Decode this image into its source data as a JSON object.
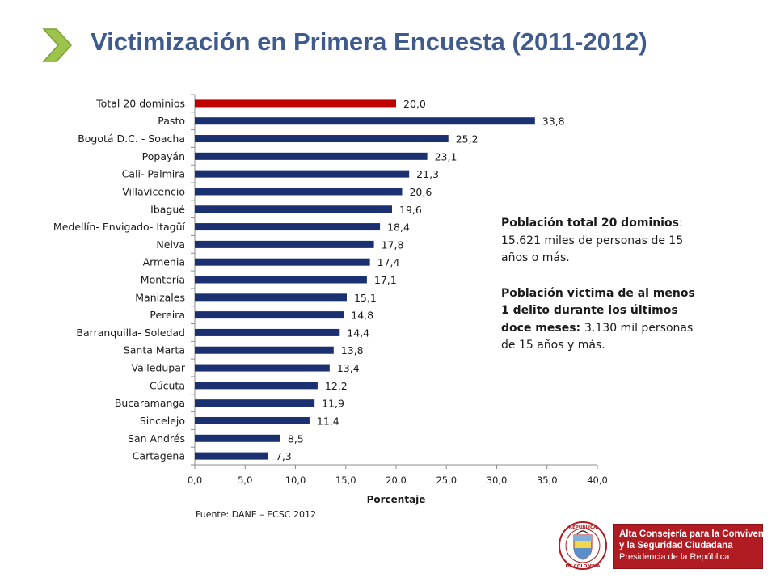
{
  "slide": {
    "title": "Victimización en Primera Encuesta (2011-2012)",
    "source": "Fuente: DANE – ECSC 2012"
  },
  "note": {
    "p1_bold": "Población total 20 dominios",
    "p1_rest": ": 15.621 miles de personas de 15 años o más.",
    "p2_bold": "Población victima de al menos 1 delito durante los últimos doce meses: ",
    "p2_rest": "3.130 mil personas de 15 años y más."
  },
  "logo": {
    "line1": "Alta Consejería para la Convivencia",
    "line2": "y la Seguridad Ciudadana",
    "line3": "Presidencia de la República",
    "seal_top": "REPÚBLICA",
    "seal_bottom": "DE COLOMBIA"
  },
  "colors": {
    "title": "#3f5b8e",
    "bar": "#1a3070",
    "highlight": "#c00000",
    "chevron": "#9cc34c",
    "logo_red": "#b01c22"
  },
  "chart_data": {
    "type": "bar",
    "orientation": "horizontal",
    "xlabel": "Porcentaje",
    "xlim": [
      0,
      40
    ],
    "xticks": [
      "0,0",
      "5,0",
      "10,0",
      "15,0",
      "20,0",
      "25,0",
      "30,0",
      "35,0",
      "40,0"
    ],
    "categories": [
      "Total 20 dominios",
      "Pasto",
      "Bogotá D.C. - Soacha",
      "Popayán",
      "Cali- Palmira",
      "Villavicencio",
      "Ibagué",
      "Medellín- Envigado- Itagüí",
      "Neiva",
      "Armenia",
      "Montería",
      "Manizales",
      "Pereira",
      "Barranquilla- Soledad",
      "Santa Marta",
      "Valledupar",
      "Cúcuta",
      "Bucaramanga",
      "Sincelejo",
      "San Andrés",
      "Cartagena"
    ],
    "values": [
      20.0,
      33.8,
      25.2,
      23.1,
      21.3,
      20.6,
      19.6,
      18.4,
      17.8,
      17.4,
      17.1,
      15.1,
      14.8,
      14.4,
      13.8,
      13.4,
      12.2,
      11.9,
      11.4,
      8.5,
      7.3
    ],
    "value_labels": [
      "20,0",
      "33,8",
      "25,2",
      "23,1",
      "21,3",
      "20,6",
      "19,6",
      "18,4",
      "17,8",
      "17,4",
      "17,1",
      "15,1",
      "14,8",
      "14,4",
      "13,8",
      "13,4",
      "12,2",
      "11,9",
      "11,4",
      "8,5",
      "7,3"
    ],
    "highlight_category": "Total 20 dominios",
    "grid": false,
    "legend": "none"
  }
}
